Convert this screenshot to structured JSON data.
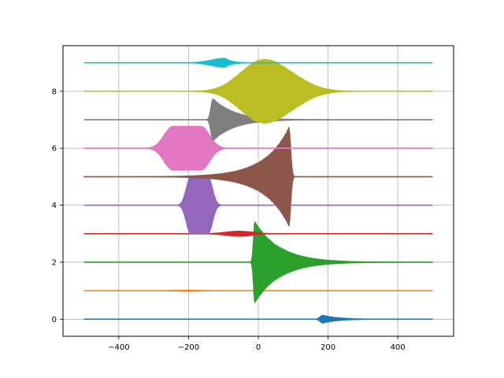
{
  "chart_data": {
    "type": "line",
    "title": "",
    "xlabel": "",
    "ylabel": "",
    "xlim": [
      -560,
      560
    ],
    "ylim": [
      -0.6,
      9.6
    ],
    "x_ticks": [
      -400,
      -200,
      0,
      200,
      400
    ],
    "y_ticks": [
      0,
      2,
      4,
      6,
      8
    ],
    "x_tick_labels": [
      "−400",
      "−200",
      "0",
      "200",
      "400"
    ],
    "y_tick_labels": [
      "0",
      "2",
      "4",
      "6",
      "8"
    ],
    "grid": true,
    "legend": "none",
    "x_range": [
      -500,
      500
    ],
    "series": [
      {
        "baseline": 0,
        "color": "#1f77b4",
        "bursts": [
          {
            "kind": "chirp",
            "center": 185,
            "amp": 0.14,
            "rise": 8,
            "decay": 45
          }
        ]
      },
      {
        "baseline": 1,
        "color": "#ff7f0e",
        "bursts": [
          {
            "kind": "sym",
            "center": -200,
            "amp": 0.02,
            "width": 40
          }
        ]
      },
      {
        "baseline": 2,
        "color": "#2ca02c",
        "bursts": [
          {
            "kind": "chirp",
            "center": -10,
            "amp": 1.45,
            "rise": 4,
            "decay": 70
          }
        ]
      },
      {
        "baseline": 3,
        "color": "#d62728",
        "bursts": [
          {
            "kind": "sym",
            "center": -55,
            "amp": 0.09,
            "width": 40
          }
        ]
      },
      {
        "baseline": 4,
        "color": "#9467bd",
        "bursts": [
          {
            "kind": "block",
            "center": -165,
            "amp": 1.0,
            "left": 30,
            "right": 22,
            "edge": 12
          }
        ]
      },
      {
        "baseline": 5,
        "color": "#8c564b",
        "bursts": [
          {
            "kind": "growth",
            "center": 88,
            "amp": 1.75,
            "rise": 70,
            "decay": 5
          }
        ]
      },
      {
        "baseline": 6,
        "color": "#e377c2",
        "bursts": [
          {
            "kind": "block",
            "center": -200,
            "amp": 0.78,
            "left": 45,
            "right": 35,
            "edge": 25
          }
        ]
      },
      {
        "baseline": 7,
        "color": "#7f7f7f",
        "bursts": [
          {
            "kind": "chirp",
            "center": -130,
            "amp": 0.75,
            "rise": 6,
            "decay": 60
          }
        ]
      },
      {
        "baseline": 8,
        "color": "#bcbd22",
        "bursts": [
          {
            "kind": "sym",
            "center": -10,
            "amp": 0.52,
            "width": 55
          },
          {
            "kind": "sym",
            "center": 50,
            "amp": 0.75,
            "width": 70
          }
        ]
      },
      {
        "baseline": 9,
        "color": "#17becf",
        "bursts": [
          {
            "kind": "chirp",
            "center": -95,
            "amp": 0.16,
            "rise": 40,
            "decay": 20
          }
        ]
      }
    ]
  }
}
